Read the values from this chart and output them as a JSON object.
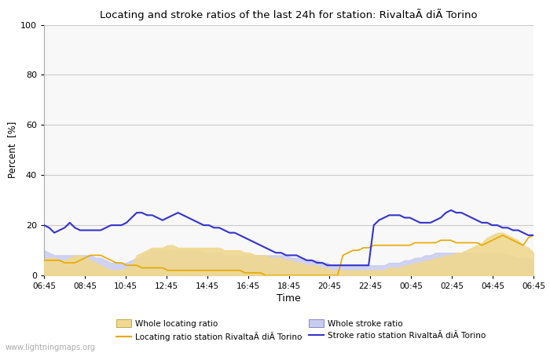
{
  "title": "Locating and stroke ratios of the last 24h for station: RivaltaÃ diÃ Torino",
  "xlabel": "Time",
  "ylabel": "Percent  [%]",
  "ylim": [
    0,
    100
  ],
  "yticks": [
    0,
    20,
    40,
    60,
    80,
    100
  ],
  "x_labels": [
    "06:45",
    "08:45",
    "10:45",
    "12:45",
    "14:45",
    "16:45",
    "18:45",
    "20:45",
    "22:45",
    "00:45",
    "02:45",
    "04:45",
    "06:45"
  ],
  "background_color": "#ffffff",
  "plot_bg_color": "#f8f8f8",
  "grid_color": "#cccccc",
  "watermark": "www.lightningmaps.org",
  "whole_locating_color": "#f0d890",
  "whole_stroke_color": "#c8ccf0",
  "locating_line_color": "#e8a800",
  "stroke_line_color": "#3333cc",
  "whole_locating_ratio": [
    6,
    7,
    7,
    6,
    6,
    7,
    8,
    8,
    7,
    6,
    5,
    4,
    3,
    2,
    2,
    2,
    3,
    4,
    8,
    9,
    10,
    11,
    11,
    11,
    12,
    12,
    11,
    11,
    11,
    11,
    11,
    11,
    11,
    11,
    11,
    10,
    10,
    10,
    10,
    9,
    9,
    8,
    8,
    8,
    7,
    7,
    7,
    6,
    6,
    5,
    5,
    4,
    4,
    4,
    3,
    3,
    2,
    2,
    2,
    2,
    2,
    2,
    2,
    2,
    2,
    2,
    2,
    3,
    3,
    3,
    4,
    4,
    5,
    5,
    6,
    6,
    7,
    7,
    8,
    8,
    9,
    9,
    10,
    11,
    12,
    13,
    15,
    16,
    17,
    17,
    16,
    15,
    14,
    12,
    11,
    9
  ],
  "whole_stroke_ratio": [
    10,
    9,
    8,
    8,
    8,
    8,
    8,
    8,
    8,
    8,
    7,
    7,
    6,
    5,
    5,
    5,
    5,
    6,
    7,
    8,
    9,
    10,
    10,
    10,
    10,
    10,
    10,
    10,
    10,
    10,
    10,
    9,
    9,
    9,
    9,
    8,
    8,
    8,
    8,
    8,
    8,
    8,
    8,
    8,
    8,
    8,
    8,
    8,
    7,
    7,
    7,
    6,
    6,
    6,
    5,
    5,
    4,
    4,
    4,
    4,
    4,
    4,
    4,
    4,
    4,
    4,
    4,
    5,
    5,
    5,
    6,
    6,
    7,
    7,
    8,
    8,
    9,
    9,
    9,
    9,
    9,
    9,
    9,
    9,
    9,
    9,
    9,
    9,
    9,
    9,
    8,
    8,
    7,
    7,
    7,
    6
  ],
  "locating_station_ratio": [
    6,
    6,
    6,
    6,
    5,
    5,
    5,
    6,
    7,
    8,
    8,
    8,
    7,
    6,
    5,
    5,
    4,
    4,
    4,
    3,
    3,
    3,
    3,
    3,
    2,
    2,
    2,
    2,
    2,
    2,
    2,
    2,
    2,
    2,
    2,
    2,
    2,
    2,
    2,
    1,
    1,
    1,
    1,
    0,
    0,
    0,
    0,
    0,
    0,
    0,
    0,
    0,
    0,
    0,
    0,
    0,
    0,
    0,
    8,
    9,
    10,
    10,
    11,
    11,
    12,
    12,
    12,
    12,
    12,
    12,
    12,
    12,
    13,
    13,
    13,
    13,
    13,
    14,
    14,
    14,
    13,
    13,
    13,
    13,
    13,
    12,
    13,
    14,
    15,
    16,
    15,
    14,
    13,
    12,
    15,
    16
  ],
  "stroke_station_ratio": [
    20,
    19,
    17,
    18,
    19,
    21,
    19,
    18,
    18,
    18,
    18,
    18,
    19,
    20,
    20,
    20,
    21,
    23,
    25,
    25,
    24,
    24,
    23,
    22,
    23,
    24,
    25,
    24,
    23,
    22,
    21,
    20,
    20,
    19,
    19,
    18,
    17,
    17,
    16,
    15,
    14,
    13,
    12,
    11,
    10,
    9,
    9,
    8,
    8,
    8,
    7,
    6,
    6,
    5,
    5,
    4,
    4,
    4,
    4,
    4,
    4,
    4,
    4,
    4,
    20,
    22,
    23,
    24,
    24,
    24,
    23,
    23,
    22,
    21,
    21,
    21,
    22,
    23,
    25,
    26,
    25,
    25,
    24,
    23,
    22,
    21,
    21,
    20,
    20,
    19,
    19,
    18,
    18,
    17,
    16,
    16
  ],
  "n_points": 96,
  "legend_labels": [
    "Whole locating ratio",
    "Locating ratio station RivaltaÃ diÃ Torino",
    "Whole stroke ratio",
    "Stroke ratio station RivaltaÃ diÃ Torino"
  ]
}
